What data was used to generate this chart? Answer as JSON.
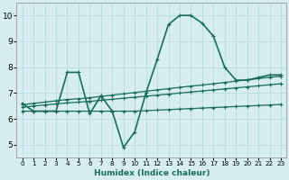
{
  "xlabel": "Humidex (Indice chaleur)",
  "background_color": "#d6eef0",
  "grid_color": "#b8dde0",
  "line_color": "#1a6b5a",
  "xlim": [
    -0.5,
    23.5
  ],
  "ylim": [
    4.5,
    10.5
  ],
  "xticks": [
    0,
    1,
    2,
    3,
    4,
    5,
    6,
    7,
    8,
    9,
    10,
    11,
    12,
    13,
    14,
    15,
    16,
    17,
    18,
    19,
    20,
    21,
    22,
    23
  ],
  "yticks": [
    5,
    6,
    7,
    8,
    9,
    10
  ],
  "series": [
    {
      "x": [
        0,
        1,
        2,
        3,
        4,
        5,
        6,
        7,
        8,
        9,
        10,
        11,
        12,
        13,
        14,
        15,
        16,
        17,
        18,
        19,
        20,
        21,
        22,
        23
      ],
      "y": [
        6.6,
        6.3,
        6.3,
        6.3,
        7.8,
        7.8,
        6.2,
        6.9,
        6.3,
        4.9,
        5.5,
        7.0,
        8.3,
        9.65,
        10.0,
        10.0,
        9.7,
        9.2,
        8.0,
        7.5,
        7.5,
        7.6,
        7.7,
        7.7
      ],
      "lw": 1.2
    },
    {
      "x": [
        0,
        1,
        2,
        3,
        4,
        5,
        6,
        7,
        8,
        9,
        10,
        11,
        12,
        13,
        14,
        15,
        16,
        17,
        18,
        19,
        20,
        21,
        22,
        23
      ],
      "y": [
        6.55,
        6.6,
        6.65,
        6.7,
        6.75,
        6.78,
        6.82,
        6.87,
        6.92,
        6.97,
        7.02,
        7.07,
        7.12,
        7.17,
        7.22,
        7.27,
        7.31,
        7.36,
        7.41,
        7.46,
        7.51,
        7.56,
        7.61,
        7.65
      ],
      "lw": 0.9
    },
    {
      "x": [
        0,
        1,
        2,
        3,
        4,
        5,
        6,
        7,
        8,
        9,
        10,
        11,
        12,
        13,
        14,
        15,
        16,
        17,
        18,
        19,
        20,
        21,
        22,
        23
      ],
      "y": [
        6.45,
        6.5,
        6.54,
        6.58,
        6.62,
        6.65,
        6.68,
        6.72,
        6.76,
        6.8,
        6.84,
        6.88,
        6.92,
        6.96,
        7.0,
        7.04,
        7.08,
        7.12,
        7.16,
        7.2,
        7.24,
        7.28,
        7.32,
        7.36
      ],
      "lw": 0.9
    },
    {
      "x": [
        0,
        1,
        2,
        3,
        4,
        5,
        6,
        7,
        8,
        9,
        10,
        11,
        12,
        13,
        14,
        15,
        16,
        17,
        18,
        19,
        20,
        21,
        22,
        23
      ],
      "y": [
        6.3,
        6.3,
        6.3,
        6.3,
        6.3,
        6.3,
        6.3,
        6.3,
        6.3,
        6.3,
        6.3,
        6.32,
        6.34,
        6.36,
        6.38,
        6.4,
        6.42,
        6.44,
        6.46,
        6.48,
        6.5,
        6.52,
        6.54,
        6.56
      ],
      "lw": 0.9
    }
  ]
}
